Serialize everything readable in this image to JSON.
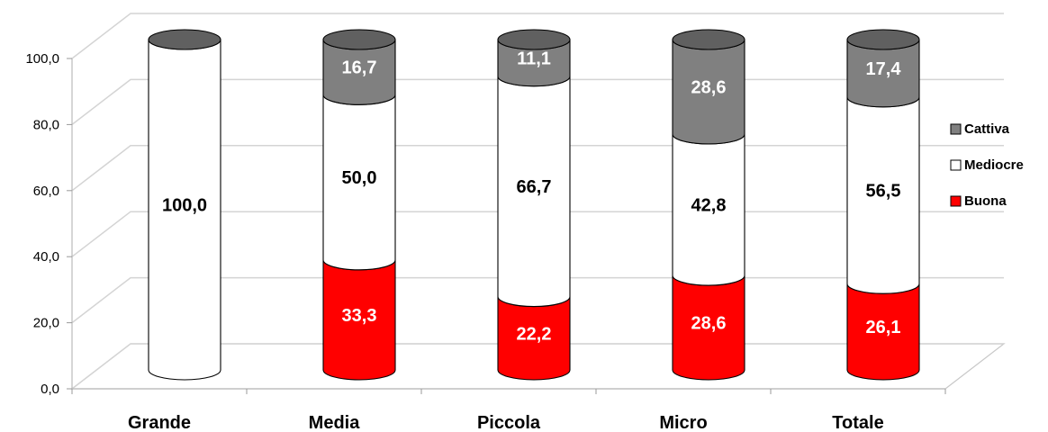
{
  "chart_data": {
    "type": "bar",
    "stacked": true,
    "three_d": true,
    "categories": [
      "Grande",
      "Media",
      "Piccola",
      "Micro",
      "Totale"
    ],
    "series": [
      {
        "name": "Buona",
        "values": [
          0,
          33.3,
          22.2,
          28.6,
          26.1
        ],
        "labels": [
          "",
          "33,3",
          "22,2",
          "28,6",
          "26,1"
        ],
        "color": "#ff0000",
        "label_color": "#ffffff"
      },
      {
        "name": "Mediocre",
        "values": [
          100.0,
          50.0,
          66.7,
          42.8,
          56.5
        ],
        "labels": [
          "100,0",
          "50,0",
          "66,7",
          "42,8",
          "56,5"
        ],
        "color": "#ffffff",
        "label_color": "#000000"
      },
      {
        "name": "Cattiva",
        "values": [
          0,
          16.7,
          11.1,
          28.6,
          17.4
        ],
        "labels": [
          "",
          "16,7",
          "11,1",
          "28,6",
          "17,4"
        ],
        "color": "#808080",
        "label_color": "#ffffff"
      }
    ],
    "ylim": [
      0,
      100
    ],
    "yticks": [
      "0,0",
      "20,0",
      "40,0",
      "60,0",
      "80,0",
      "100,0"
    ],
    "grid": true,
    "legend_position": "right",
    "legend_order": [
      "Cattiva",
      "Mediocre",
      "Buona"
    ]
  }
}
